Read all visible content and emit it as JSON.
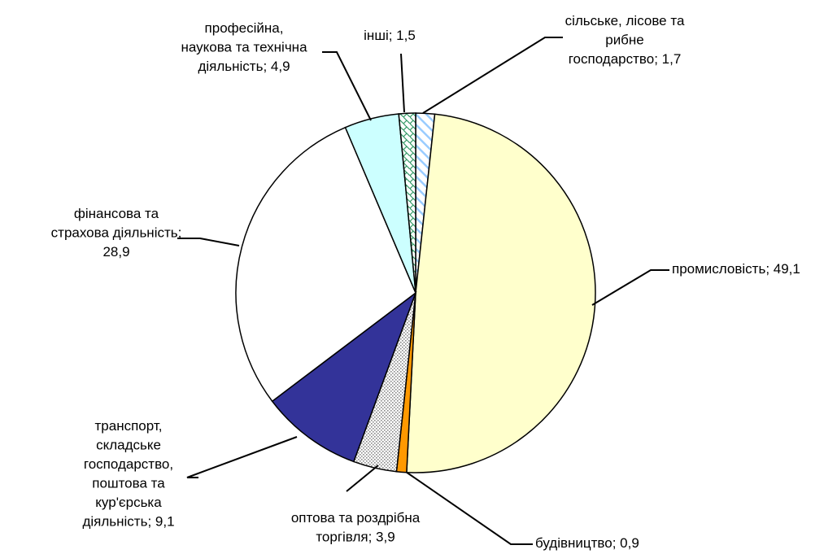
{
  "chart_data": {
    "type": "pie",
    "slices": [
      {
        "label_lines": [
          "сільське, лісове та",
          "рибне",
          "господарство; 1,7"
        ],
        "value": 1.7,
        "color": "#ffffff",
        "pattern": "hatch-blue"
      },
      {
        "label_lines": [
          "промисловість; 49,1"
        ],
        "value": 49.1,
        "color": "#ffffcc",
        "pattern": "none"
      },
      {
        "label_lines": [
          "будівництво; 0,9"
        ],
        "value": 0.9,
        "color": "#ff9900",
        "pattern": "none"
      },
      {
        "label_lines": [
          "оптова та роздрібна",
          "торгівля; 3,9"
        ],
        "value": 3.9,
        "color": "#ffffff",
        "pattern": "dots-gray"
      },
      {
        "label_lines": [
          "транспорт,",
          "складське",
          "господарство,",
          "поштова та",
          "кур'єрська",
          "діяльність; 9,1"
        ],
        "value": 9.1,
        "color": "#333399",
        "pattern": "none"
      },
      {
        "label_lines": [
          "фінансова та",
          "страхова діяльність;",
          "28,9"
        ],
        "value": 28.9,
        "color": "#ffffff",
        "pattern": "none"
      },
      {
        "label_lines": [
          "професійна,",
          "наукова та технічна",
          "діяльність; 4,9"
        ],
        "value": 4.9,
        "color": "#ccffff",
        "pattern": "none"
      },
      {
        "label_lines": [
          "інші; 1,5"
        ],
        "value": 1.5,
        "color": "#ffffff",
        "pattern": "check-green"
      }
    ]
  }
}
